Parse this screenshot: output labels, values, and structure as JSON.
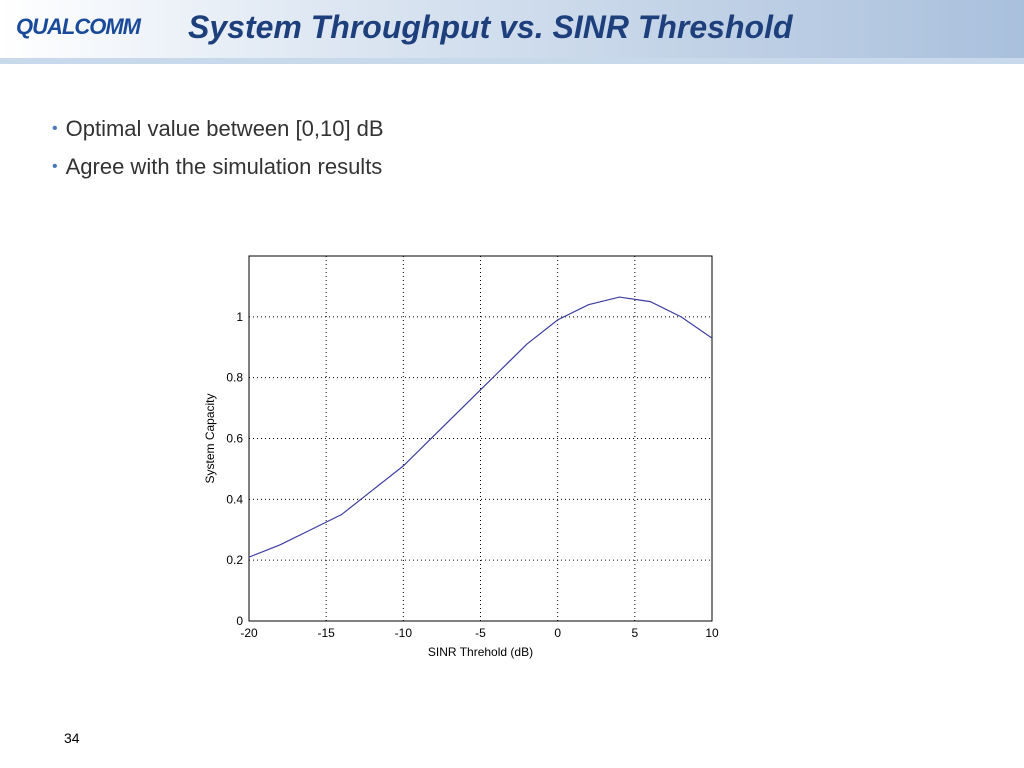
{
  "logo": "QUALCOMM",
  "header": {
    "title": "System Throughput vs. SINR Threshold"
  },
  "bullets": [
    "Optimal value between [0,10] dB",
    "Agree with the simulation results"
  ],
  "page_number": "34",
  "chart_data": {
    "type": "line",
    "x": [
      -20,
      -18,
      -16,
      -14,
      -12,
      -10,
      -8,
      -6,
      -5,
      -4,
      -2,
      0,
      2,
      4,
      6,
      8,
      10
    ],
    "values": [
      0.21,
      0.25,
      0.3,
      0.35,
      0.43,
      0.51,
      0.61,
      0.71,
      0.76,
      0.81,
      0.91,
      0.99,
      1.04,
      1.065,
      1.05,
      1.0,
      0.93
    ],
    "color": "#3d3d9e",
    "xlabel": "SINR Threhold (dB)",
    "ylabel": "System Capacity",
    "xlim": [
      -20,
      10
    ],
    "xticks": [
      -20,
      -15,
      -10,
      -5,
      0,
      5,
      10
    ],
    "ylim": [
      0,
      1.2
    ],
    "yticks": [
      0,
      0.2,
      0.4,
      0.6,
      0.8,
      1
    ],
    "grid": true
  }
}
